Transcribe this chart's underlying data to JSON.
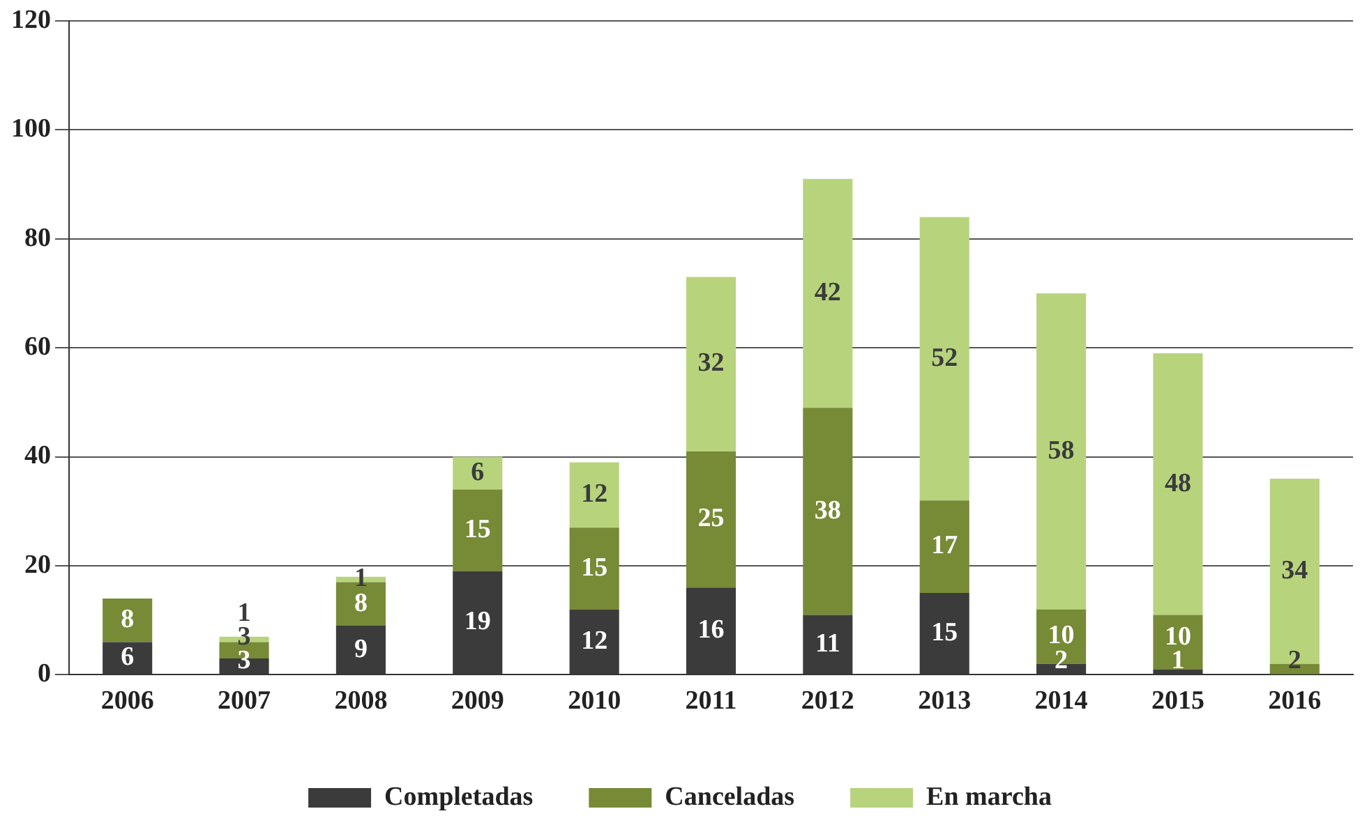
{
  "chart_data": {
    "type": "bar",
    "stacked": true,
    "categories": [
      "2006",
      "2007",
      "2008",
      "2009",
      "2010",
      "2011",
      "2012",
      "2013",
      "2014",
      "2015",
      "2016"
    ],
    "series": [
      {
        "name": "Completadas",
        "color": "#3b3b3b",
        "values": [
          6,
          3,
          9,
          19,
          12,
          16,
          11,
          15,
          2,
          1,
          null
        ]
      },
      {
        "name": "Canceladas",
        "color": "#778a36",
        "values": [
          8,
          3,
          8,
          15,
          15,
          25,
          38,
          17,
          10,
          10,
          2
        ]
      },
      {
        "name": "En marcha",
        "color": "#b7d47d",
        "values": [
          null,
          1,
          1,
          6,
          12,
          32,
          42,
          52,
          58,
          48,
          34
        ]
      }
    ],
    "ylim": [
      0,
      120
    ],
    "yticks": [
      0,
      20,
      40,
      60,
      80,
      100,
      120
    ],
    "grid": "y",
    "legend": "bottom",
    "data_labels": true
  }
}
